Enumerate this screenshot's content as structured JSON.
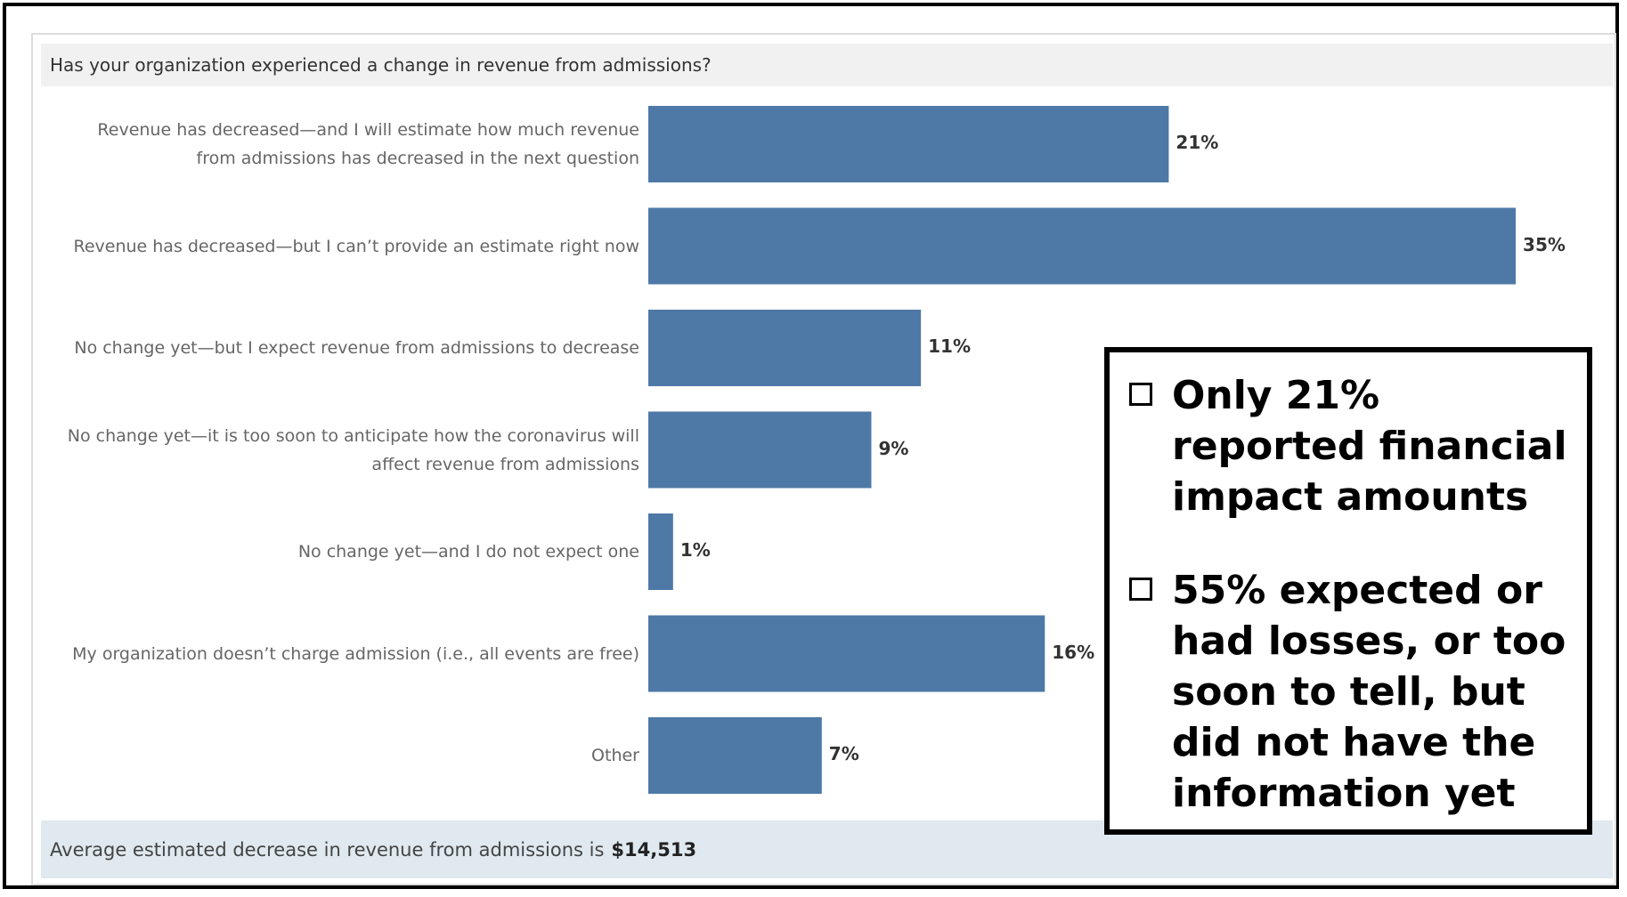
{
  "chart_data": {
    "type": "bar",
    "orientation": "horizontal",
    "title": "Has your organization experienced a change in revenue from admissions?",
    "categories": [
      [
        "Revenue has decreased—and I will estimate how much revenue",
        "from admissions has decreased in the next question"
      ],
      [
        "Revenue has decreased—but I can’t provide an estimate right now"
      ],
      [
        "No change yet—but I expect revenue from admissions to decrease"
      ],
      [
        "No change yet—it is too soon to anticipate how the coronavirus will",
        "affect revenue from admissions"
      ],
      [
        "No change yet—and I do not expect one"
      ],
      [
        "My organization doesn’t charge admission (i.e., all events are free)"
      ],
      [
        "Other"
      ]
    ],
    "values": [
      21,
      35,
      11,
      9,
      1,
      16,
      7
    ],
    "value_labels": [
      "21%",
      "35%",
      "11%",
      "9%",
      "1%",
      "16%",
      "7%"
    ],
    "unit": "%",
    "bar_color": "#4e79a7",
    "grid": false,
    "legend": "none"
  },
  "footer": {
    "text": "Average estimated decrease in revenue from admissions is",
    "amount": "$14,513"
  },
  "callout": {
    "items": [
      [
        "Only 21%",
        "reported financial",
        "impact amounts"
      ],
      [
        "55% expected or",
        "had losses, or too",
        "soon to tell, but",
        "did not have the",
        "information yet"
      ]
    ]
  }
}
